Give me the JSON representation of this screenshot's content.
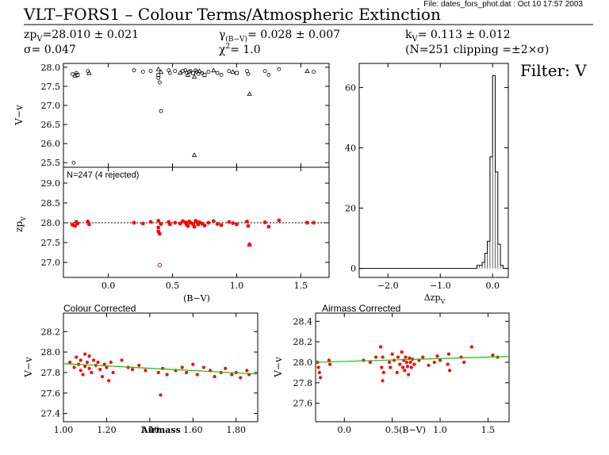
{
  "header": {
    "file_info": "File: dates_fors_phot.dat : Oct 10 17:57 2003",
    "title": "VLT–FORS1 – Colour Terms/Atmospheric Extinction",
    "zp": "zp",
    "zp_sub": "V",
    "zp_value": "=28.010 ± 0.021",
    "sigma": "σ=  0.047",
    "gamma": "γ",
    "gamma_sub": "(B−V)",
    "gamma_value": "=  0.028 ± 0.007",
    "chi": "χ",
    "chi_sup": "2",
    "chi_value": "=   1.0",
    "k": "k",
    "k_sub": "V",
    "k_value": "=  0.113 ± 0.012",
    "n_clipping": "(N=251  clipping =±2×σ)",
    "filter": "Filter: V"
  },
  "colors": {
    "points": "#ff0000",
    "fit": "#00cc00",
    "axes": "#000000"
  },
  "chart_data": [
    {
      "id": "mag_vs_color",
      "type": "scatter",
      "title": "",
      "xlabel": "",
      "ylabel": "V−v",
      "xlim": [
        -0.35,
        1.72
      ],
      "ylim": [
        25.38,
        28.1
      ],
      "xticks": [
        0.0,
        0.5,
        1.0,
        1.5
      ],
      "yticks": [
        25.5,
        26.0,
        26.5,
        27.0,
        27.5,
        28.0
      ],
      "ytick_labels": [
        "25.5",
        "26.0",
        "26.5",
        "27.0",
        "27.5",
        "28.0"
      ],
      "markers": "open circles/triangles (black)",
      "x": [
        -0.28,
        -0.26,
        -0.25,
        -0.24,
        -0.16,
        -0.15,
        0.2,
        0.27,
        0.33,
        0.39,
        0.39,
        0.39,
        0.4,
        0.41,
        0.47,
        0.48,
        0.52,
        0.56,
        0.58,
        0.6,
        0.61,
        0.62,
        0.63,
        0.64,
        0.66,
        0.67,
        0.68,
        0.69,
        0.7,
        0.71,
        0.73,
        0.75,
        0.78,
        0.82,
        0.85,
        0.88,
        0.94,
        0.97,
        1.0,
        1.08,
        1.09,
        1.1,
        1.22,
        1.25,
        1.33,
        1.55,
        1.6,
        -0.27,
        0.41,
        0.67
      ],
      "y": [
        27.82,
        27.78,
        27.85,
        27.8,
        27.9,
        27.85,
        27.92,
        27.88,
        27.9,
        27.95,
        27.8,
        27.72,
        27.6,
        27.88,
        27.92,
        27.85,
        27.9,
        27.86,
        27.9,
        27.92,
        27.85,
        27.8,
        27.88,
        27.9,
        27.85,
        27.75,
        27.92,
        27.88,
        27.82,
        27.9,
        27.85,
        27.8,
        27.88,
        27.92,
        27.85,
        27.8,
        27.9,
        27.88,
        27.85,
        27.9,
        27.82,
        27.3,
        27.9,
        27.8,
        27.95,
        27.9,
        27.88,
        25.5,
        26.85,
        25.7
      ]
    },
    {
      "id": "zp_vs_color",
      "type": "scatter",
      "title": "",
      "annotation": "N=247 (4 rejected)",
      "xlabel": "(B−V)",
      "ylabel": "zp",
      "ylabel_sub": "V",
      "xlim": [
        -0.35,
        1.72
      ],
      "ylim": [
        26.62,
        29.4
      ],
      "xticks": [
        0.0,
        0.5,
        1.0,
        1.5
      ],
      "xtick_labels": [
        "0.0",
        "0.5",
        "1.0",
        "1.5"
      ],
      "yticks": [
        27.0,
        27.5,
        28.0,
        28.5,
        29.0
      ],
      "ytick_labels": [
        "27.0",
        "27.5",
        "28.0",
        "28.5",
        "29.0"
      ],
      "reference_line": 28.0,
      "x": [
        -0.28,
        -0.26,
        -0.25,
        -0.24,
        -0.16,
        -0.15,
        0.2,
        0.27,
        0.33,
        0.39,
        0.39,
        0.39,
        0.4,
        0.41,
        0.47,
        0.48,
        0.52,
        0.56,
        0.58,
        0.6,
        0.61,
        0.62,
        0.63,
        0.64,
        0.66,
        0.67,
        0.68,
        0.69,
        0.7,
        0.71,
        0.73,
        0.75,
        0.78,
        0.82,
        0.85,
        0.88,
        0.94,
        0.97,
        1.0,
        1.08,
        1.09,
        1.1,
        1.22,
        1.25,
        1.33,
        1.55,
        1.6
      ],
      "y": [
        27.95,
        27.92,
        28.02,
        27.98,
        28.03,
        27.96,
        28.0,
        27.98,
        28.02,
        28.05,
        27.88,
        27.78,
        27.72,
        27.97,
        28.02,
        27.96,
        28.0,
        27.98,
        28.04,
        28.01,
        27.95,
        27.92,
        28.03,
        28.0,
        27.97,
        27.9,
        28.05,
        28.02,
        27.96,
        28.01,
        27.98,
        27.93,
        28.0,
        28.04,
        27.97,
        27.94,
        28.02,
        27.99,
        27.96,
        28.03,
        27.92,
        27.45,
        28.01,
        27.9,
        28.06,
        28.0,
        28.0
      ],
      "rejected_x": [
        0.4,
        1.1
      ],
      "rejected_y": [
        26.93,
        27.45
      ]
    },
    {
      "id": "residual_histogram",
      "type": "histogram",
      "title": "",
      "xlabel": "Δzp",
      "xlabel_sub": "V",
      "xlim": [
        -2.55,
        0.3
      ],
      "ylim": [
        -3,
        68
      ],
      "xticks": [
        -2.0,
        -1.0,
        0.0
      ],
      "xtick_labels": [
        "−2.0",
        "−1.0",
        "0.0"
      ],
      "yticks": [
        0,
        20,
        40,
        60
      ],
      "ytick_labels": [
        "0",
        "20",
        "40",
        "60"
      ],
      "bins": [
        -0.3,
        -0.25,
        -0.2,
        -0.15,
        -0.1,
        -0.05,
        0.0,
        0.05,
        0.1,
        0.15,
        0.2
      ],
      "counts": [
        1,
        1,
        2,
        5,
        9,
        37,
        64,
        32,
        8,
        1
      ]
    },
    {
      "id": "colour_corrected",
      "type": "scatter",
      "title": "Colour Corrected",
      "xlabel": "Airmass",
      "ylabel": "V−v",
      "xlim": [
        1.0,
        1.9
      ],
      "ylim": [
        27.32,
        28.38
      ],
      "xticks": [
        1.0,
        1.2,
        1.4,
        1.6,
        1.8
      ],
      "xtick_labels": [
        "1.00",
        "1.20",
        "1.40",
        "1.60",
        "1.80"
      ],
      "yticks": [
        27.4,
        27.6,
        27.8,
        28.0,
        28.2
      ],
      "ytick_labels": [
        "27.4",
        "27.6",
        "27.8",
        "28.0",
        "28.2"
      ],
      "fit_line": {
        "x": [
          1.0,
          1.9
        ],
        "y": [
          27.887,
          27.785
        ]
      },
      "x": [
        1.03,
        1.05,
        1.06,
        1.07,
        1.08,
        1.08,
        1.09,
        1.1,
        1.1,
        1.11,
        1.12,
        1.12,
        1.13,
        1.14,
        1.15,
        1.16,
        1.17,
        1.18,
        1.19,
        1.2,
        1.21,
        1.22,
        1.23,
        1.27,
        1.3,
        1.32,
        1.35,
        1.38,
        1.44,
        1.45,
        1.46,
        1.48,
        1.52,
        1.55,
        1.57,
        1.6,
        1.62,
        1.65,
        1.68,
        1.7,
        1.73,
        1.75,
        1.78,
        1.8,
        1.82,
        1.85,
        1.86
      ],
      "y": [
        27.9,
        27.85,
        27.95,
        27.88,
        27.82,
        27.92,
        27.78,
        27.98,
        27.86,
        27.9,
        27.84,
        27.96,
        27.8,
        27.92,
        27.87,
        27.9,
        27.83,
        27.76,
        27.88,
        27.85,
        27.72,
        27.9,
        27.8,
        27.92,
        27.85,
        27.83,
        27.87,
        27.82,
        27.8,
        27.58,
        27.84,
        27.78,
        27.82,
        27.85,
        27.8,
        27.88,
        27.78,
        27.85,
        27.82,
        27.76,
        27.8,
        27.84,
        27.78,
        27.8,
        27.75,
        27.82,
        27.78
      ]
    },
    {
      "id": "airmass_corrected",
      "type": "scatter",
      "title": "Airmass Corrected",
      "xlabel": "(B−V)",
      "ylabel": "V−v",
      "xlim": [
        -0.3,
        1.72
      ],
      "ylim": [
        27.42,
        28.48
      ],
      "xticks": [
        0.0,
        0.5,
        1.0,
        1.5
      ],
      "xtick_labels": [
        "0.0",
        "0.5",
        "1.0",
        "1.5"
      ],
      "yticks": [
        27.6,
        27.8,
        28.0,
        28.2,
        28.4
      ],
      "ytick_labels": [
        "27.6",
        "27.8",
        "28.0",
        "28.2",
        "28.4"
      ],
      "fit_line": {
        "x": [
          -0.3,
          1.72
        ],
        "y": [
          28.0,
          28.057
        ]
      },
      "x": [
        -0.28,
        -0.27,
        -0.26,
        -0.25,
        -0.16,
        -0.15,
        0.2,
        0.27,
        0.33,
        0.38,
        0.39,
        0.4,
        0.4,
        0.41,
        0.47,
        0.48,
        0.5,
        0.52,
        0.55,
        0.56,
        0.58,
        0.6,
        0.61,
        0.62,
        0.63,
        0.64,
        0.65,
        0.66,
        0.67,
        0.68,
        0.69,
        0.7,
        0.71,
        0.73,
        0.78,
        0.82,
        0.88,
        0.94,
        0.97,
        1.0,
        1.08,
        1.09,
        1.1,
        1.22,
        1.25,
        1.33,
        1.55,
        1.6
      ],
      "y": [
        28.0,
        27.95,
        27.9,
        27.85,
        28.02,
        27.98,
        28.02,
        28.0,
        28.05,
        28.15,
        27.95,
        28.05,
        27.82,
        27.9,
        28.0,
        27.95,
        28.08,
        28.02,
        27.9,
        28.05,
        27.98,
        28.1,
        27.95,
        28.02,
        27.92,
        28.05,
        28.0,
        27.96,
        27.88,
        28.04,
        28.0,
        27.95,
        28.03,
        27.98,
        28.02,
        28.05,
        27.97,
        28.0,
        28.06,
        28.02,
        27.98,
        28.08,
        27.92,
        28.05,
        28.0,
        28.15,
        28.07,
        28.05
      ]
    }
  ]
}
